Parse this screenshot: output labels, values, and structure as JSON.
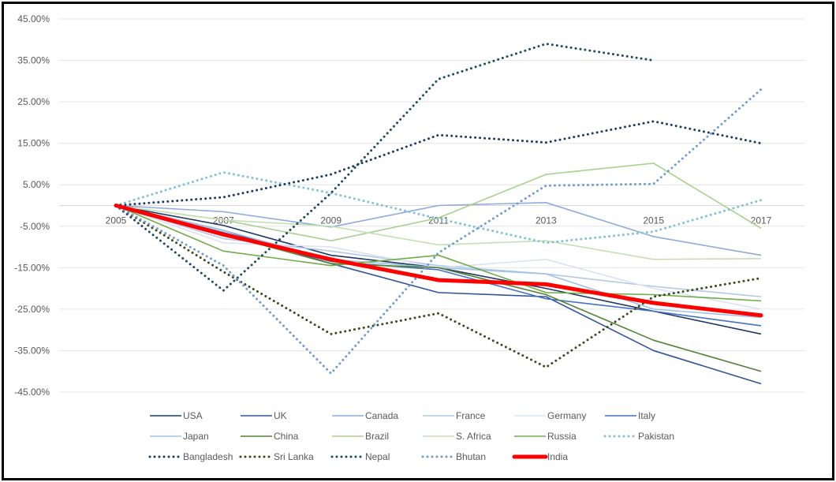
{
  "chart_data": {
    "type": "line",
    "title": "",
    "xlabel": "",
    "ylabel": "",
    "categories": [
      "2005",
      "2007",
      "2009",
      "2011",
      "2013",
      "2015",
      "2017"
    ],
    "ylim": [
      -45,
      45
    ],
    "yticks": [
      45,
      35,
      25,
      15,
      5,
      -5,
      -15,
      -25,
      -35,
      -45
    ],
    "ytick_labels": [
      "45.00%",
      "35.00%",
      "25.00%",
      "15.00%",
      "5.00%",
      "-5.00%",
      "-15.00%",
      "-25.00%",
      "-35.00%",
      "-45.00%"
    ],
    "grid": true,
    "legend_position": "bottom",
    "series": [
      {
        "name": "USA",
        "color": "#1f3864",
        "style": "solid",
        "values": [
          0,
          -4.8,
          -12,
          -15,
          -20,
          -25.5,
          -31
        ]
      },
      {
        "name": "UK",
        "color": "#2f5597",
        "style": "solid",
        "values": [
          0,
          -6,
          -14,
          -21,
          -22,
          -35,
          -43
        ]
      },
      {
        "name": "Canada",
        "color": "#8faadc",
        "style": "solid",
        "values": [
          0,
          -1.5,
          -5.2,
          0,
          0.7,
          -7.5,
          -12
        ]
      },
      {
        "name": "France",
        "color": "#b4c7e7",
        "style": "solid",
        "values": [
          0,
          -8,
          -11,
          -14.5,
          -16.5,
          -19.5,
          -22
        ]
      },
      {
        "name": "Germany",
        "color": "#dae3f3",
        "style": "solid",
        "values": [
          0,
          -9,
          -10,
          -15,
          -13,
          -20,
          -25
        ]
      },
      {
        "name": "Italy",
        "color": "#4472c4",
        "style": "solid",
        "values": [
          0,
          -6.5,
          -13.5,
          -15.5,
          -22.5,
          -25.5,
          -29
        ]
      },
      {
        "name": "Japan",
        "color": "#9dc3e6",
        "style": "solid",
        "values": [
          0,
          -6,
          -13,
          -15,
          -16.5,
          -25,
          -27
        ]
      },
      {
        "name": "China",
        "color": "#548235",
        "style": "solid",
        "values": [
          0,
          -7,
          -14,
          -15,
          -21.5,
          -32.5,
          -40
        ]
      },
      {
        "name": "Brazil",
        "color": "#a9d18e",
        "style": "solid",
        "values": [
          0,
          -3.5,
          -8.5,
          -3,
          7.5,
          10.2,
          -5.5
        ]
      },
      {
        "name": "S. Africa",
        "color": "#c5e0b4",
        "style": "solid",
        "values": [
          0,
          -3.5,
          -5,
          -9.5,
          -8.5,
          -13,
          -12.8
        ]
      },
      {
        "name": "Russia",
        "color": "#70ad47",
        "style": "solid",
        "values": [
          0,
          -11,
          -14.5,
          -12,
          -21,
          -21.5,
          -23
        ]
      },
      {
        "name": "Pakistan",
        "color": "#7cc3d6",
        "style": "dotted",
        "values": [
          0,
          8,
          3,
          -3.2,
          -9,
          -6.3,
          1.3
        ]
      },
      {
        "name": "Bangladesh",
        "color": "#1f3864",
        "style": "dotted",
        "values": [
          0,
          2,
          7.5,
          17,
          15.2,
          20.3,
          15
        ]
      },
      {
        "name": "Sri Lanka",
        "color": "#3b4a1c",
        "style": "dotted",
        "values": [
          0,
          -16,
          -31,
          -26,
          -39,
          -22,
          -17.5
        ]
      },
      {
        "name": "Nepal",
        "color": "#1b4a5a",
        "style": "dotted",
        "values": [
          0,
          -20.5,
          3,
          30.5,
          39,
          35,
          null
        ]
      },
      {
        "name": "Bhutan",
        "color": "#6f9bd1",
        "style": "dotted",
        "values": [
          0,
          -14.5,
          -40.5,
          -11.4,
          4.8,
          5.2,
          28
        ]
      },
      {
        "name": "India",
        "color": "#ff0000",
        "style": "bold",
        "values": [
          0,
          -7,
          -13,
          -18,
          -19,
          -23.5,
          -26.5
        ]
      }
    ]
  }
}
